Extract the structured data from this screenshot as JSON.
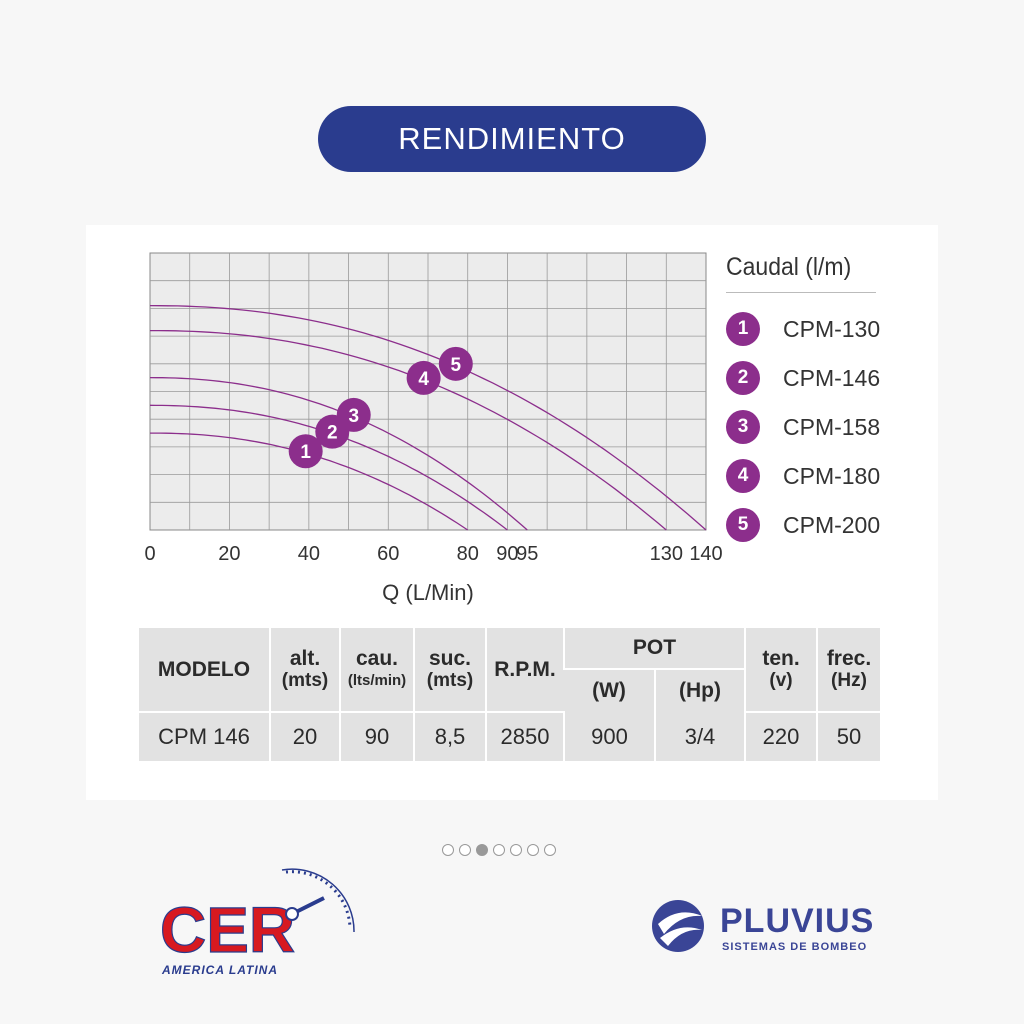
{
  "header": {
    "title": "RENDIMIENTO"
  },
  "legend": {
    "title": "Caudal (l/m)",
    "items": [
      {
        "badge": "1",
        "label": "CPM-130"
      },
      {
        "badge": "2",
        "label": "CPM-146"
      },
      {
        "badge": "3",
        "label": "CPM-158"
      },
      {
        "badge": "4",
        "label": "CPM-180"
      },
      {
        "badge": "5",
        "label": "CPM-200"
      }
    ]
  },
  "chart_data": {
    "type": "line",
    "xlabel": "Q (L/Min)",
    "ylabel": "",
    "grid": true,
    "xlim": [
      0,
      140
    ],
    "x_ticks": [
      "0",
      "20",
      "40",
      "60",
      "80",
      "90",
      "95",
      "130",
      "140"
    ],
    "legend_position": "right",
    "curve_color": "#8c2e8c",
    "series": [
      {
        "name": "CPM-130",
        "marker": "1",
        "start_y": 3.5,
        "end_x": 80
      },
      {
        "name": "CPM-146",
        "marker": "2",
        "start_y": 4.5,
        "end_x": 90
      },
      {
        "name": "CPM-158",
        "marker": "3",
        "start_y": 5.5,
        "end_x": 95
      },
      {
        "name": "CPM-180",
        "marker": "4",
        "start_y": 7.2,
        "end_x": 130
      },
      {
        "name": "CPM-200",
        "marker": "5",
        "start_y": 8.1,
        "end_x": 140
      }
    ]
  },
  "table": {
    "headers": {
      "modelo": "MODELO",
      "alt": "alt.",
      "alt_unit": "(mts)",
      "cau": "cau.",
      "cau_unit": "(lts/min)",
      "suc": "suc.",
      "suc_unit": "(mts)",
      "rpm": "R.P.M.",
      "pot": "POT",
      "pot_w": "(W)",
      "pot_hp": "(Hp)",
      "ten": "ten.",
      "ten_unit": "(v)",
      "frec": "frec.",
      "frec_unit": "(Hz)"
    },
    "row": {
      "modelo": "CPM 146",
      "alt": "20",
      "cau": "90",
      "suc": "8,5",
      "rpm": "2850",
      "pot_w": "900",
      "pot_hp": "3/4",
      "ten": "220",
      "frec": "50"
    }
  },
  "carousel": {
    "count": 7,
    "active_index": 2
  },
  "logos": {
    "cer": {
      "name": "CER",
      "subtitle": "AMERICA LATINA"
    },
    "pluvius": {
      "name": "PLUVIUS",
      "subtitle": "SISTEMAS DE BOMBEO"
    }
  }
}
